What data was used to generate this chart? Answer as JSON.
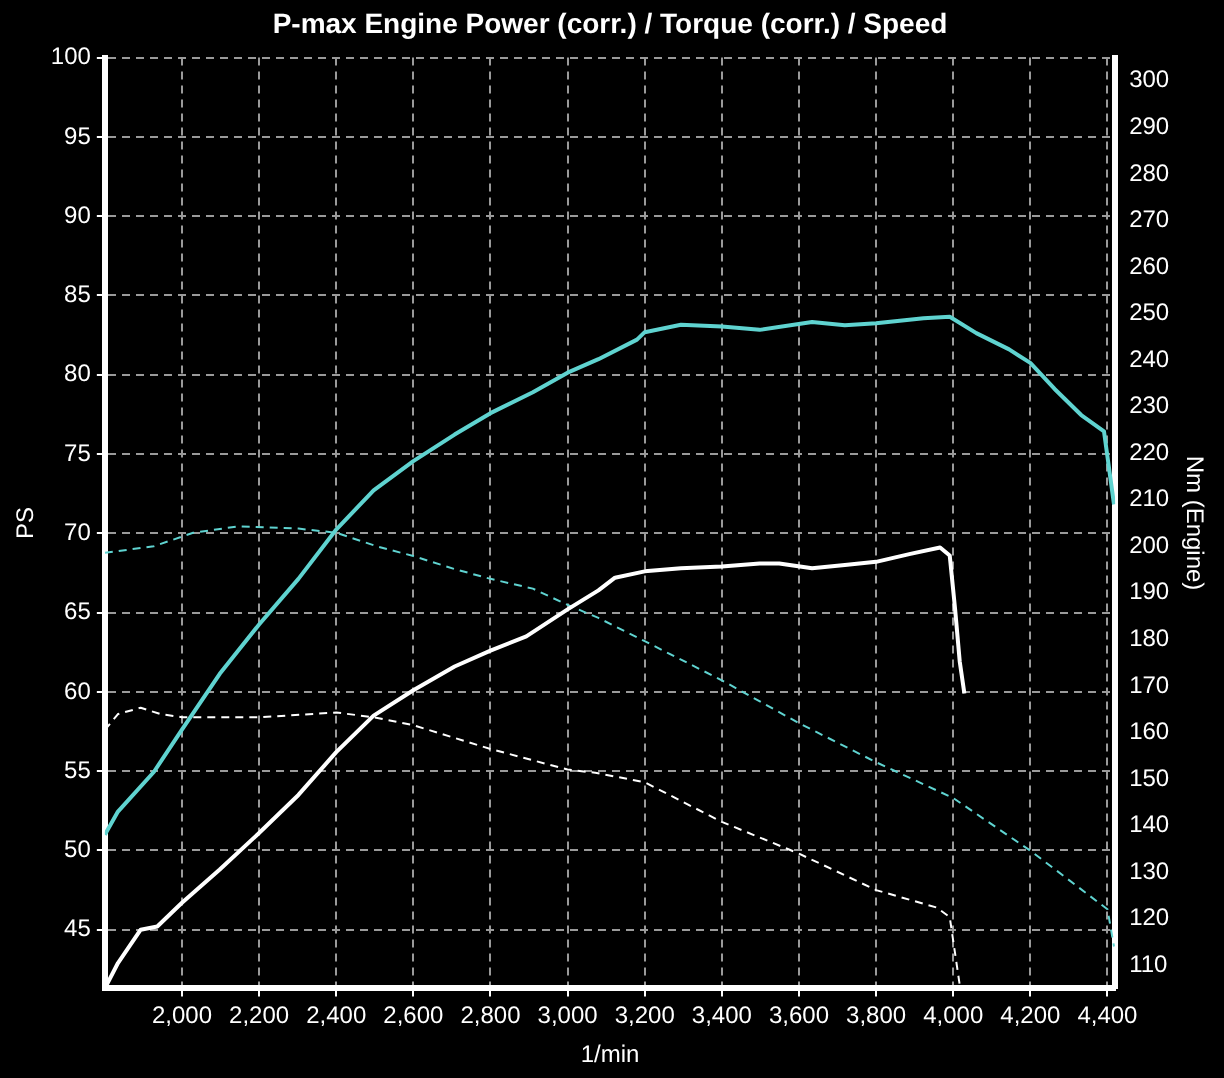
{
  "chart_data": {
    "type": "line",
    "title": "P-max Engine Power (corr.) / Torque (corr.) / Speed",
    "xlabel": "1/min",
    "ylabel": "PS",
    "y2label": "Nm (Engine)",
    "xlim": [
      1800,
      4420
    ],
    "xticks": [
      {
        "value": 2000,
        "label": "2,000"
      },
      {
        "value": 2200,
        "label": "2,200"
      },
      {
        "value": 2400,
        "label": "2,400"
      },
      {
        "value": 2600,
        "label": "2,600"
      },
      {
        "value": 2800,
        "label": "2,800"
      },
      {
        "value": 3000,
        "label": "3,000"
      },
      {
        "value": 3200,
        "label": "3,200"
      },
      {
        "value": 3400,
        "label": "3,400"
      },
      {
        "value": 3600,
        "label": "3,600"
      },
      {
        "value": 3800,
        "label": "3,800"
      },
      {
        "value": 4000,
        "label": "4,000"
      },
      {
        "value": 4200,
        "label": "4,200"
      },
      {
        "value": 4400,
        "label": "4,400"
      }
    ],
    "ylim": [
      41.3,
      100
    ],
    "yticks": [
      45,
      50,
      55,
      60,
      65,
      70,
      75,
      80,
      85,
      90,
      95,
      100
    ],
    "y2lim": [
      105,
      305
    ],
    "y2ticks": [
      110,
      120,
      130,
      140,
      150,
      160,
      170,
      180,
      190,
      200,
      210,
      220,
      230,
      240,
      250,
      260,
      270,
      280,
      290,
      300
    ],
    "grid": true,
    "legend": false,
    "marker": "none",
    "series": [
      {
        "color": "#ffffff",
        "axis": "y",
        "line_style": "solid",
        "x": [
          1800,
          1834,
          1893,
          1936,
          2000,
          2098,
          2200,
          2302,
          2400,
          2497,
          2600,
          2707,
          2800,
          2893,
          3000,
          3080,
          3123,
          3200,
          3294,
          3400,
          3498,
          3549,
          3634,
          3719,
          3800,
          3889,
          3966,
          3991,
          4005,
          4017,
          4029
        ],
        "values": [
          41.3,
          42.9,
          45,
          45.2,
          46.7,
          48.8,
          51.1,
          53.5,
          56.2,
          58.5,
          60.1,
          61.6,
          62.6,
          63.5,
          65.2,
          66.4,
          67.2,
          67.6,
          67.8,
          67.9,
          68.1,
          68.1,
          67.8,
          68,
          68.2,
          68.7,
          69.1,
          68.6,
          65.2,
          61.9,
          59.9
        ]
      },
      {
        "color": "#5fd3d0",
        "axis": "y2",
        "line_style": "solid",
        "x": [
          1800,
          1834,
          1927,
          2000,
          2098,
          2200,
          2302,
          2400,
          2497,
          2600,
          2707,
          2800,
          2910,
          3000,
          3080,
          3180,
          3200,
          3294,
          3400,
          3498,
          3634,
          3719,
          3800,
          3923,
          3991,
          4060,
          4145,
          4200,
          4263,
          4332,
          4391,
          4417
        ],
        "values": [
          138,
          143,
          151.5,
          160.6,
          172.6,
          183.2,
          193,
          203.6,
          212,
          218.3,
          224,
          228.6,
          233.1,
          237.3,
          240.2,
          244.4,
          246,
          247.6,
          247.2,
          246.5,
          248.2,
          247.5,
          247.9,
          249,
          249.3,
          245.8,
          242.3,
          239.4,
          233.8,
          228.2,
          224.7,
          209
        ]
      },
      {
        "color": "#5fd3d0",
        "axis": "y2",
        "line_style": "dashed",
        "x": [
          1800,
          1927,
          2029,
          2147,
          2302,
          2400,
          2505,
          2600,
          2707,
          2800,
          2910,
          3000,
          3080,
          3200,
          3400,
          3600,
          3800,
          4000,
          4200,
          4400,
          4417
        ],
        "values": [
          198.6,
          200,
          202.9,
          204.3,
          203.8,
          202.9,
          200,
          197.9,
          195.1,
          193,
          190.9,
          187.4,
          184.6,
          179.6,
          171.2,
          162,
          153.6,
          145.9,
          134.6,
          122,
          114
        ]
      },
      {
        "color": "#ffffff",
        "axis": "y",
        "line_style": "dashed",
        "x": [
          1800,
          1834,
          1893,
          1944,
          2000,
          2200,
          2400,
          2497,
          2600,
          2800,
          3000,
          3072,
          3200,
          3400,
          3600,
          3800,
          3957,
          3991,
          4017
        ],
        "values": [
          57.6,
          58.6,
          59,
          58.6,
          58.4,
          58.4,
          58.7,
          58.4,
          57.9,
          56.4,
          55.1,
          54.9,
          54.3,
          51.8,
          49.8,
          47.5,
          46.4,
          45.8,
          41.5
        ]
      }
    ]
  }
}
